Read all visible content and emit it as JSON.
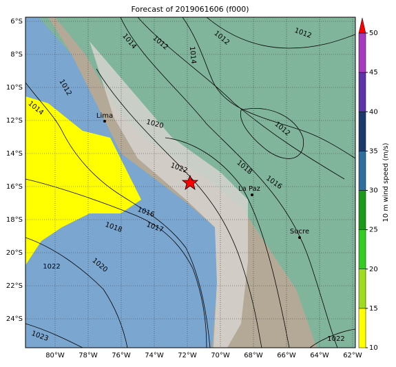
{
  "map": {
    "title": "Forecast of 2019061606 (f000)",
    "lat_labels": [
      "6°S",
      "8°S",
      "10°S",
      "12°S",
      "14°S",
      "16°S",
      "18°S",
      "20°S",
      "22°S",
      "24°S"
    ],
    "lon_labels": [
      "80°W",
      "78°W",
      "76°W",
      "74°W",
      "72°W",
      "70°W",
      "68°W",
      "66°W",
      "64°W",
      "62°W"
    ],
    "cities": [
      "Lima",
      "La Paz",
      "Sucre"
    ],
    "contour_labels": [
      "1014",
      "1012",
      "1014",
      "1012",
      "1012",
      "1012",
      "1014",
      "1020",
      "1012",
      "1022",
      "1018",
      "1016",
      "1016",
      "1017",
      "1018",
      "1022",
      "1020",
      "1023",
      "1022"
    ],
    "colorbar": {
      "label": "10 m wind speed (m/s)",
      "lim": [
        10,
        50
      ],
      "ticks": [
        10,
        15,
        20,
        25,
        30,
        35,
        40,
        45,
        50
      ],
      "colors": [
        "#ffff00",
        "#9fdc1e",
        "#33cc22",
        "#1b9a1b",
        "#2e6f9e",
        "#1d3a6d",
        "#5d35a8",
        "#a83bbd"
      ],
      "extend_color": "#ff0000"
    }
  }
}
